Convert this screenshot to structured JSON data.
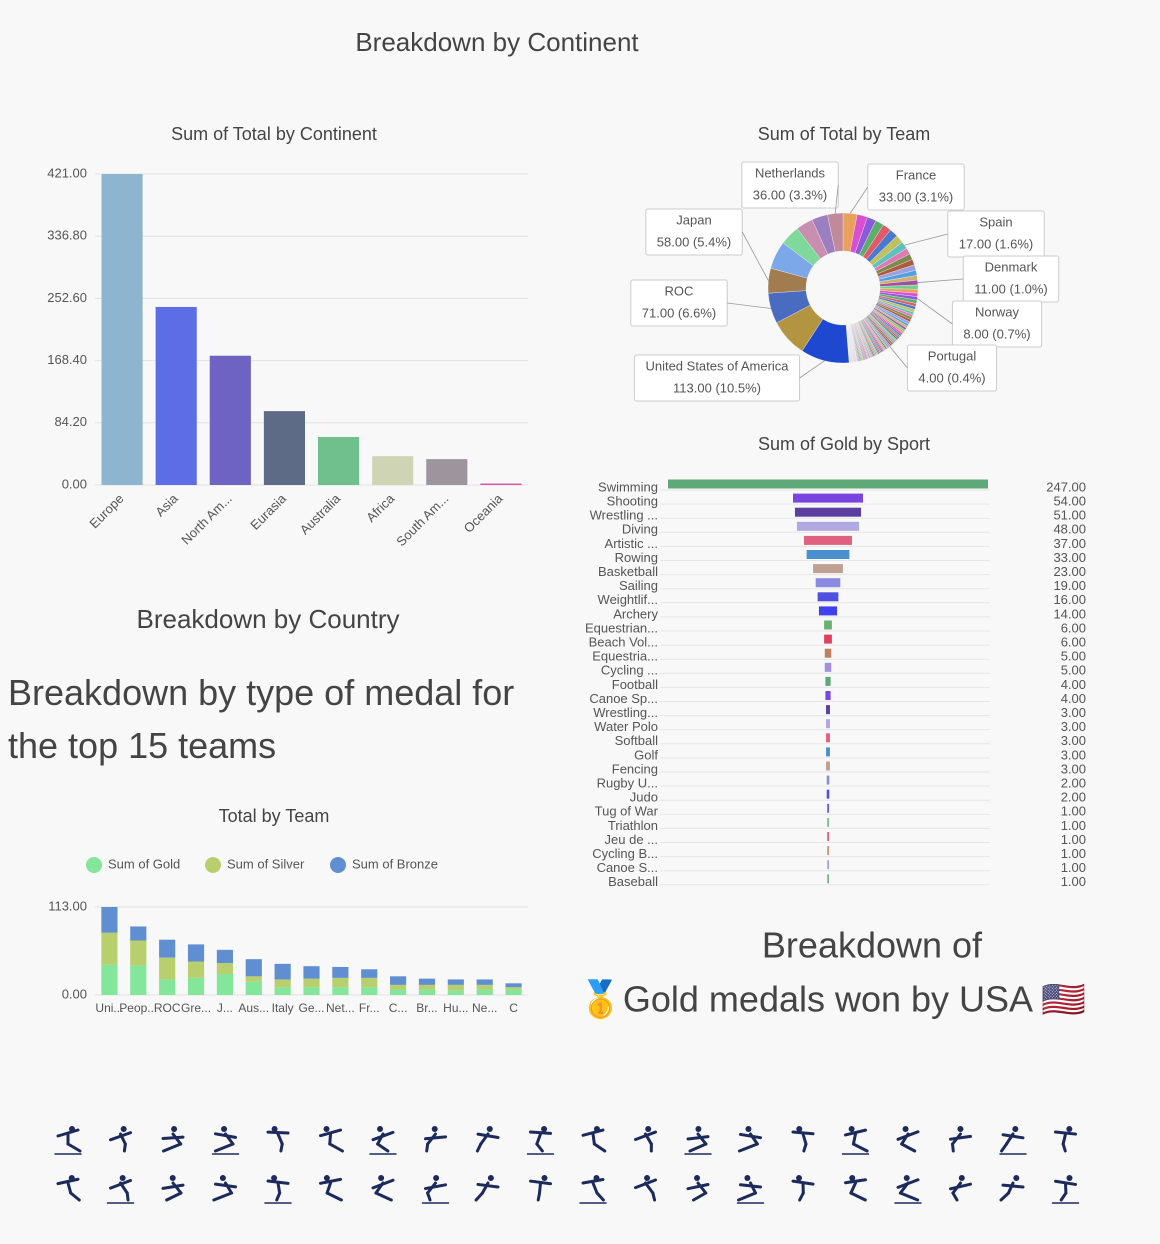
{
  "headings": [
    "Breakdown by Continent",
    "Breakdown by Country",
    "Breakdown by type of medal for the top 15 teams",
    "Breakdown of",
    "🥇Gold medals won by USA 🇺🇸"
  ],
  "chart_data": [
    {
      "type": "bar",
      "title": "Sum of Total by Continent",
      "categories": [
        "Europe",
        "Asia",
        "North Am...",
        "Eurasia",
        "Australia",
        "Africa",
        "South Am...",
        "Oceania"
      ],
      "values": [
        421,
        241,
        175,
        100,
        65,
        39,
        35,
        2
      ],
      "colors": [
        "#8fb4cf",
        "#5c6de6",
        "#6e62c2",
        "#5d6b87",
        "#6fc08c",
        "#cfd4b4",
        "#9e949d",
        "#d65aa8"
      ],
      "ylim": [
        0,
        421
      ],
      "yticks": [
        {
          "value": 0,
          "label": "0.00"
        },
        {
          "value": 84.2,
          "label": "84.20"
        },
        {
          "value": 168.4,
          "label": "168.40"
        },
        {
          "value": 252.6,
          "label": "252.60"
        },
        {
          "value": 336.8,
          "label": "336.80"
        },
        {
          "value": 421,
          "label": "421.00"
        }
      ],
      "grid": true
    },
    {
      "type": "pie",
      "title": "Sum of Total by Team",
      "donut": true,
      "categories": [
        "France",
        null,
        null,
        null,
        null,
        null,
        null,
        "Spain",
        null,
        null,
        null,
        null,
        null,
        null,
        "Denmark",
        null,
        null,
        null,
        "Norway",
        null,
        null,
        null,
        null,
        null,
        null,
        null,
        null,
        null,
        null,
        null,
        null,
        null,
        null,
        null,
        null,
        null,
        null,
        null,
        null,
        null,
        null,
        null,
        null,
        "Portugal",
        null,
        null,
        null,
        null,
        null,
        null,
        null,
        null,
        null,
        null,
        null,
        null,
        null,
        null,
        null,
        null,
        null,
        null,
        null,
        null,
        null,
        null,
        null,
        null,
        null,
        null,
        null,
        null,
        null,
        null,
        null,
        null,
        null,
        null,
        null,
        null,
        null,
        null,
        null,
        null,
        null,
        null,
        null,
        null,
        null,
        null,
        null,
        null,
        null,
        null,
        null,
        null,
        null,
        "United States of America",
        null,
        "ROC",
        "Japan",
        null,
        null,
        null,
        null,
        "Netherlands"
      ],
      "values": [
        33,
        24,
        21,
        20,
        20,
        20,
        19,
        17,
        15,
        14,
        13,
        13,
        12,
        11,
        11,
        10,
        9,
        8,
        8,
        8,
        7,
        7,
        7,
        6,
        6,
        6,
        6,
        6,
        5,
        5,
        5,
        5,
        5,
        4,
        4,
        4,
        4,
        4,
        4,
        4,
        4,
        4,
        4,
        4,
        3,
        3,
        3,
        3,
        3,
        3,
        3,
        3,
        3,
        3,
        3,
        3,
        3,
        3,
        2,
        2,
        2,
        2,
        2,
        2,
        2,
        2,
        2,
        2,
        2,
        2,
        2,
        2,
        2,
        2,
        2,
        2,
        2,
        1,
        1,
        1,
        1,
        1,
        1,
        1,
        1,
        1,
        1,
        1,
        1,
        1,
        1,
        1,
        1,
        1,
        1,
        1,
        1,
        113,
        88,
        71,
        58,
        65,
        46,
        40,
        37,
        36
      ],
      "value_labels": [
        "33.00 (3.1%)",
        null,
        null,
        null,
        null,
        null,
        null,
        "17.00 (1.6%)",
        null,
        null,
        null,
        null,
        null,
        null,
        "11.00 (1.0%)",
        null,
        null,
        null,
        "8.00 (0.7%)",
        null,
        null,
        null,
        null,
        null,
        null,
        null,
        null,
        null,
        null,
        null,
        null,
        null,
        null,
        null,
        null,
        null,
        null,
        null,
        null,
        null,
        null,
        null,
        null,
        "4.00 (0.4%)",
        null,
        null,
        null,
        null,
        null,
        null,
        null,
        null,
        null,
        null,
        null,
        null,
        null,
        null,
        null,
        null,
        null,
        null,
        null,
        null,
        null,
        null,
        null,
        null,
        null,
        null,
        null,
        null,
        null,
        null,
        null,
        null,
        null,
        null,
        null,
        null,
        null,
        null,
        null,
        null,
        null,
        null,
        null,
        null,
        null,
        null,
        null,
        null,
        null,
        null,
        null,
        null,
        null,
        "113.00 (10.5%)",
        null,
        "71.00 (6.6%)",
        "58.00 (5.4%)",
        null,
        null,
        null,
        null,
        "36.00 (3.3%)"
      ],
      "palette": [
        "#e8a05a",
        "#d94fd0",
        "#8a5ad8",
        "#5ab06a",
        "#e05a6a",
        "#4a7ad0",
        "#c0c060",
        "#60c0c0",
        "#e07ab0",
        "#7a8a50",
        "#b05a3a",
        "#9aa0e0",
        "#50a0e0",
        "#d0b070",
        "#a050a0",
        "#70d090"
      ],
      "big_colors": [
        "#1f48d0",
        "#b39440",
        "#4a6cc0",
        "#a07c4f",
        "#7ca7e8",
        "#7fd99a",
        "#c88fb0",
        "#9b7fc0",
        "#c08a9a"
      ]
    },
    {
      "type": "funnel",
      "title": "Sum of Gold by Sport",
      "categories": [
        "Swimming",
        "Shooting",
        "Wrestling ...",
        "Diving",
        "Artistic ...",
        "Rowing",
        "Basketball",
        "Sailing",
        "Weightlif...",
        "Archery",
        "Equestrian...",
        "Beach Vol...",
        "Equestria...",
        "Cycling ...",
        "Football",
        "Canoe Sp...",
        "Wrestling...",
        "Water Polo",
        "Softball",
        "Golf",
        "Fencing",
        "Rugby U...",
        "Judo",
        "Tug of War",
        "Triathlon",
        "Jeu de ...",
        "Cycling B...",
        "Canoe S...",
        "Baseball"
      ],
      "values": [
        247,
        54,
        51,
        48,
        37,
        33,
        23,
        19,
        16,
        14,
        6,
        6,
        5,
        5,
        4,
        4,
        3,
        3,
        3,
        3,
        3,
        2,
        2,
        1,
        1,
        1,
        1,
        1,
        1
      ],
      "value_labels": [
        "247.00",
        "54.00",
        "51.00",
        "48.00",
        "37.00",
        "33.00",
        "23.00",
        "19.00",
        "16.00",
        "14.00",
        "6.00",
        "6.00",
        "5.00",
        "5.00",
        "4.00",
        "4.00",
        "3.00",
        "3.00",
        "3.00",
        "3.00",
        "3.00",
        "2.00",
        "2.00",
        "1.00",
        "1.00",
        "1.00",
        "1.00",
        "1.00",
        "1.00"
      ],
      "palette": [
        "#5fa878",
        "#7a44e0",
        "#5a3fa0",
        "#b0a8e0",
        "#e06080",
        "#4a90d0",
        "#c0a090",
        "#8a8ae0",
        "#5050e0",
        "#4040f0",
        "#6ab070",
        "#e04060",
        "#c08060",
        "#a090e0"
      ]
    },
    {
      "type": "stacked_bar",
      "title": "Total by Team",
      "legend": "top",
      "categories": [
        "Uni...",
        "Peop...",
        "ROC",
        "Gre...",
        "J...",
        "Aus...",
        "Italy",
        "Ge...",
        "Net...",
        "Fr...",
        "C...",
        "Br...",
        "Hu...",
        "Ne...",
        "C"
      ],
      "series": [
        {
          "name": "Sum of Gold",
          "color": "#84e69a",
          "values": [
            39,
            38,
            20,
            22,
            27,
            17,
            10,
            10,
            10,
            10,
            7,
            7,
            6,
            7,
            7
          ]
        },
        {
          "name": "Sum of Silver",
          "color": "#b9cf6e",
          "values": [
            41,
            32,
            28,
            21,
            14,
            7,
            10,
            11,
            12,
            12,
            6,
            6,
            7,
            6,
            3
          ]
        },
        {
          "name": "Sum of Bronze",
          "color": "#5f8fd1",
          "values": [
            33,
            18,
            23,
            22,
            17,
            22,
            20,
            16,
            14,
            11,
            11,
            8,
            7,
            7,
            5
          ]
        }
      ],
      "ylim": [
        0,
        113
      ],
      "yticks": [
        {
          "value": 0,
          "label": "0.00"
        },
        {
          "value": 113,
          "label": "113.00"
        }
      ],
      "grid": true
    }
  ]
}
